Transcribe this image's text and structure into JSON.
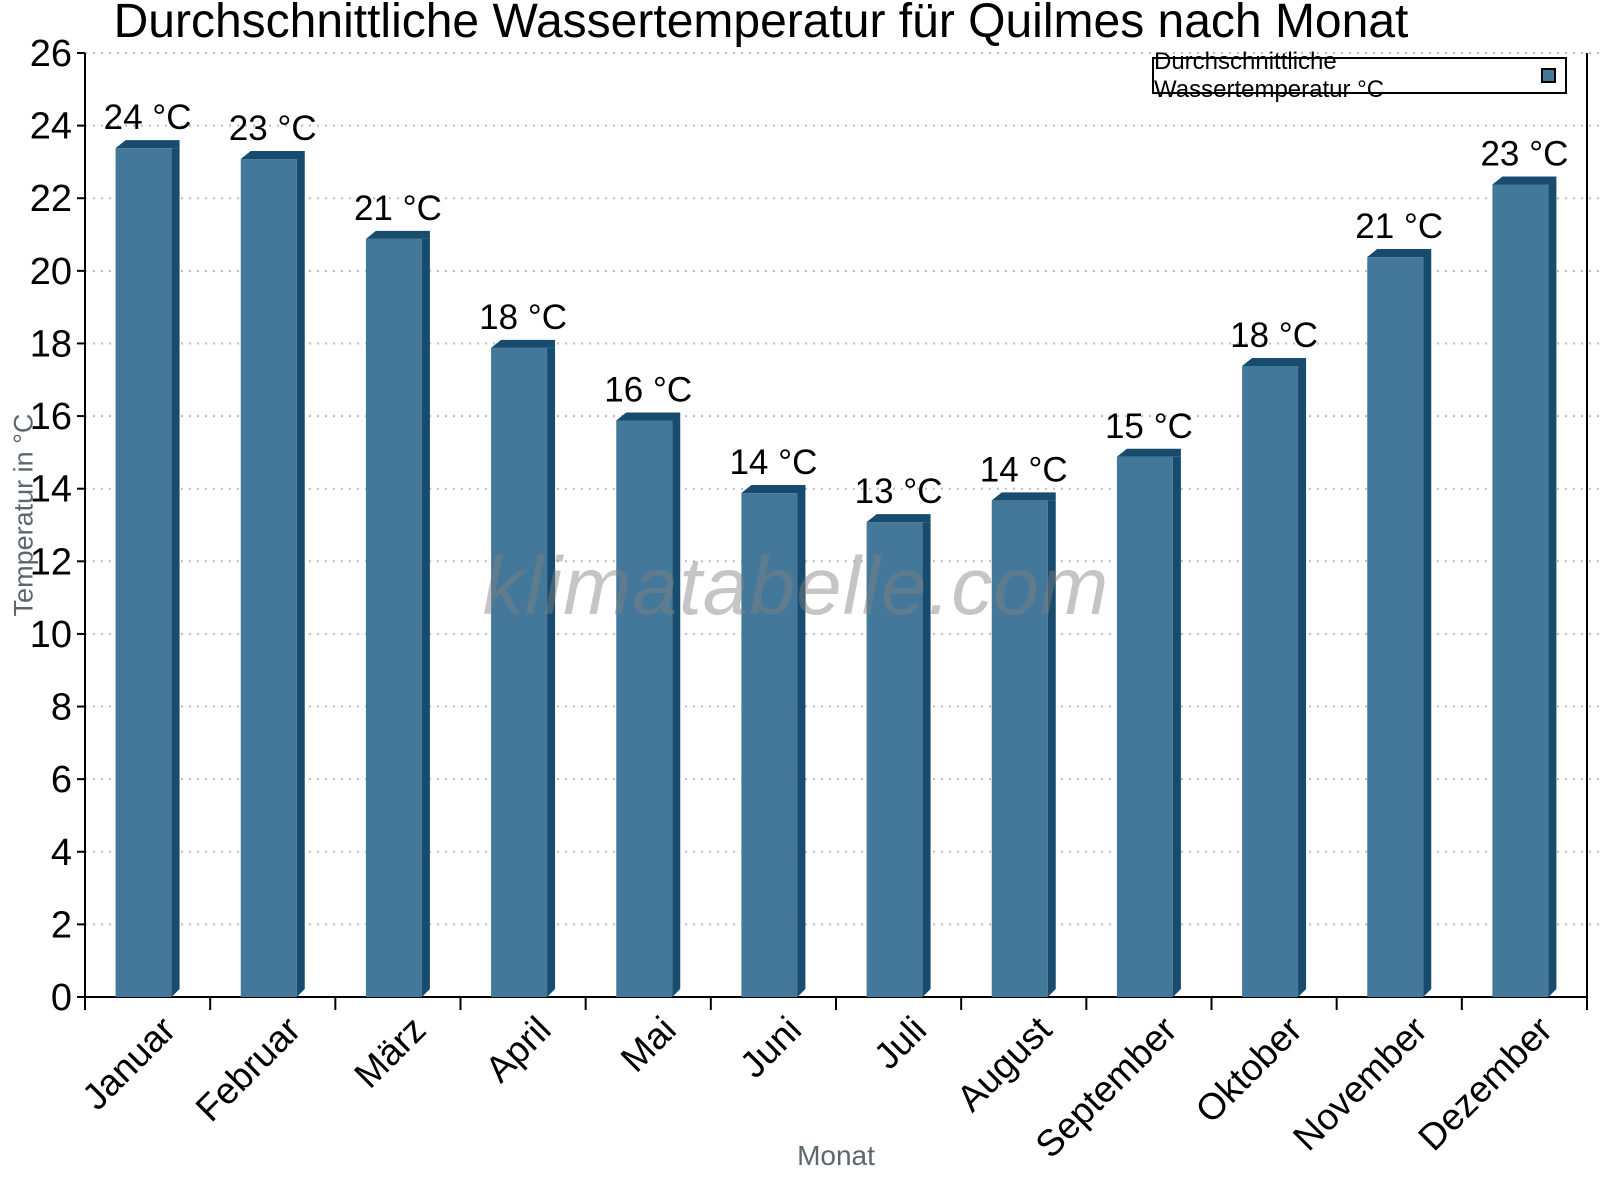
{
  "chart_data": {
    "type": "bar",
    "title": "Durchschnittliche Wassertemperatur für Quilmes nach Monat",
    "xlabel": "Monat",
    "ylabel": "Temperatur in °C",
    "watermark": "klimatabelle.com",
    "legend": {
      "label": "Durchschnittliche Wassertemperatur °C",
      "position": "top-right"
    },
    "categories": [
      "Januar",
      "Februar",
      "März",
      "April",
      "Mai",
      "Juni",
      "Juli",
      "August",
      "September",
      "Oktober",
      "November",
      "Dezember"
    ],
    "values": [
      24,
      23,
      21,
      18,
      16,
      14,
      13,
      14,
      15,
      18,
      21,
      23
    ],
    "value_labels": [
      "24 °C",
      "23 °C",
      "21 °C",
      "18 °C",
      "16 °C",
      "14 °C",
      "13 °C",
      "14 °C",
      "15 °C",
      "18 °C",
      "21 °C",
      "23 °C"
    ],
    "bar_top_values": [
      23.6,
      23.3,
      21.1,
      18.1,
      16.1,
      14.1,
      13.3,
      13.9,
      15.1,
      17.6,
      20.6,
      22.6
    ],
    "ylim": [
      0,
      26
    ],
    "ytick_step": 2,
    "grid": true,
    "colors": {
      "bar_fill": "#44789B",
      "bar_shadow": "#174C6F",
      "gridline": "#BBBBBB",
      "axis": "#000000",
      "axis_title": "#5A6670",
      "tick_label": "#000000",
      "watermark": "#808080",
      "background": "#FFFFFF",
      "legend_border": "#000000"
    }
  }
}
